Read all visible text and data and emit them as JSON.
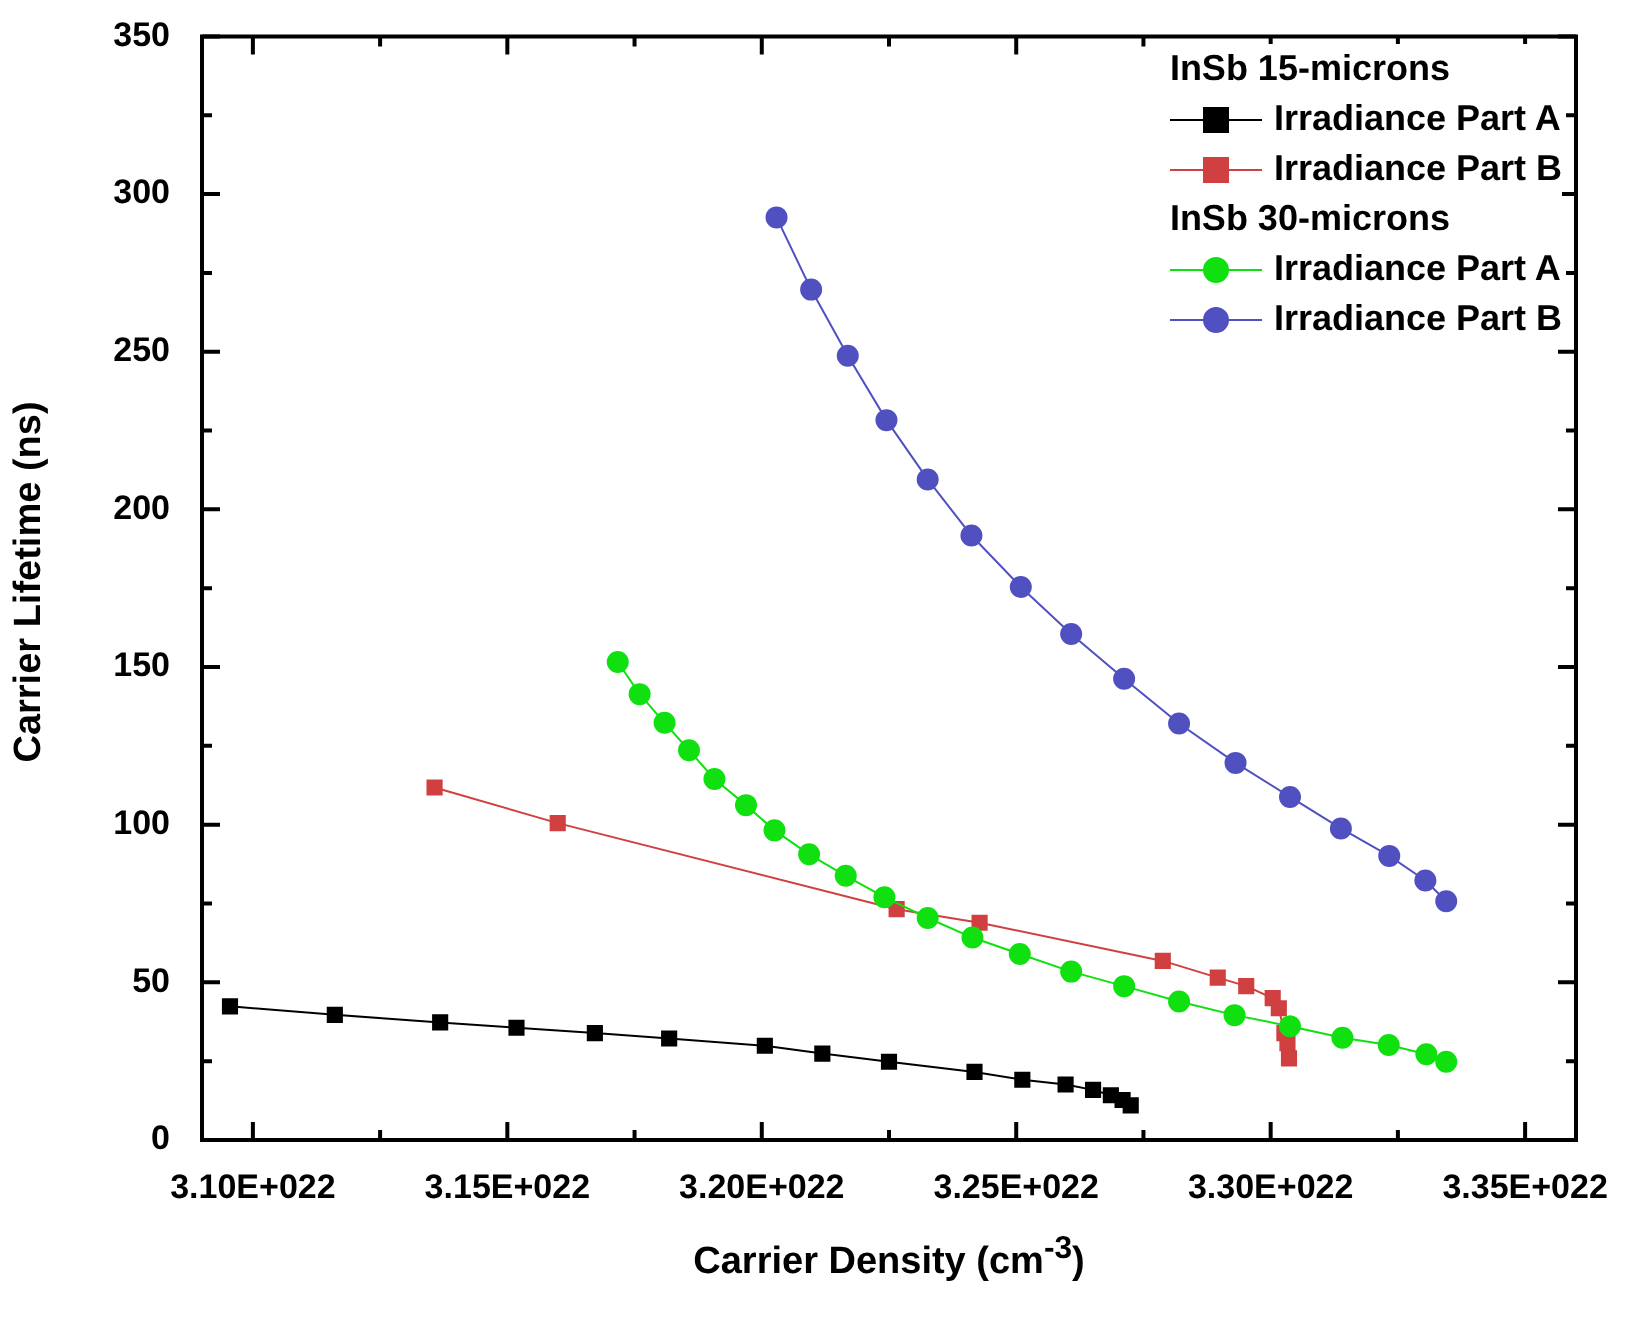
{
  "chart_data": {
    "type": "line",
    "xlabel": "Carrier Density (cm$^{-3}$)",
    "ylabel": "Carrier Lifetime (ns)",
    "annotations": [
      "InSb 15-microns",
      "InSb 30-microns"
    ],
    "xlim": [
      3.09e+22,
      3.36e+22
    ],
    "xticks": [
      {
        "value": 3.1e+22,
        "label": "3.10E+022"
      },
      {
        "value": 3.125e+22,
        "label": null
      },
      {
        "value": 3.15e+22,
        "label": "3.15E+022"
      },
      {
        "value": 3.175e+22,
        "label": null
      },
      {
        "value": 3.2e+22,
        "label": "3.20E+022"
      },
      {
        "value": 3.225e+22,
        "label": null
      },
      {
        "value": 3.25e+22,
        "label": "3.25E+022"
      },
      {
        "value": 3.275e+22,
        "label": null
      },
      {
        "value": 3.3e+22,
        "label": "3.30E+022"
      },
      {
        "value": 3.325e+22,
        "label": null
      },
      {
        "value": 3.35e+22,
        "label": "3.35E+022"
      }
    ],
    "ylim": [
      0,
      350
    ],
    "yticks": [
      0,
      {
        "value": 25,
        "label": null
      },
      50,
      {
        "value": 75,
        "label": null
      },
      100,
      {
        "value": 125,
        "label": null
      },
      150,
      {
        "value": 175,
        "label": null
      },
      200,
      {
        "value": 225,
        "label": null
      },
      250,
      {
        "value": 275,
        "label": null
      },
      300,
      {
        "value": 325,
        "label": null
      },
      350
    ],
    "grid": false,
    "legend": "top right",
    "line_style": "solid",
    "series": [
      {
        "name": "Irradiance Part A",
        "color": "#000000",
        "marker": "square",
        "x": [
          3.0955e+22,
          3.1161e+22,
          3.1368e+22,
          3.1518e+22,
          3.1672e+22,
          3.1818e+22,
          3.2006e+22,
          3.2119e+22,
          3.225e+22,
          3.2418e+22,
          3.2512e+22,
          3.2597e+22,
          3.2651e+22,
          3.2686e+22,
          3.2709e+22,
          3.2725e+22
        ],
        "values": [
          42.4,
          39.7,
          37.3,
          35.6,
          33.9,
          32.2,
          29.9,
          27.4,
          24.8,
          21.6,
          19.1,
          17.6,
          15.9,
          14.2,
          12.7,
          11.0
        ]
      },
      {
        "name": "Irradiance Part B",
        "color": "#d04040",
        "marker": "square",
        "x": [
          3.1357e+22,
          3.1599e+22,
          3.2265e+22,
          3.2428e+22,
          3.2788e+22,
          3.2896e+22,
          3.2952e+22,
          3.3004e+22,
          3.3016e+22,
          3.3027e+22,
          3.3033e+22,
          3.3036e+22
        ],
        "values": [
          111.8,
          100.5,
          73.2,
          68.9,
          56.8,
          51.5,
          48.8,
          45.0,
          41.8,
          33.9,
          30.7,
          25.9
        ]
      },
      {
        "name": "Irradiance Part A",
        "color": "#10e010",
        "marker": "circle",
        "x": [
          3.1717e+22,
          3.176e+22,
          3.1809e+22,
          3.1857e+22,
          3.1907e+22,
          3.1969e+22,
          3.2025e+22,
          3.2093e+22,
          3.2165e+22,
          3.2241e+22,
          3.2326e+22,
          3.2414e+22,
          3.2507e+22,
          3.2608e+22,
          3.2712e+22,
          3.282e+22,
          3.2929e+22,
          3.3038e+22,
          3.3141e+22,
          3.3232e+22,
          3.3306e+22,
          3.3345e+22
        ],
        "values": [
          151.6,
          141.4,
          132.3,
          123.6,
          114.5,
          106.2,
          98.2,
          90.6,
          83.8,
          77.0,
          70.4,
          64.2,
          59.0,
          53.4,
          48.8,
          43.9,
          39.6,
          36.1,
          32.4,
          30.1,
          27.2,
          24.8
        ]
      },
      {
        "name": "Irradiance Part B",
        "color": "#5050c0",
        "marker": "circle",
        "x": [
          3.2029e+22,
          3.2097e+22,
          3.2169e+22,
          3.2245e+22,
          3.2326e+22,
          3.2412e+22,
          3.2509e+22,
          3.2608e+22,
          3.2712e+22,
          3.282e+22,
          3.2931e+22,
          3.3038e+22,
          3.3138e+22,
          3.3233e+22,
          3.3304e+22,
          3.3345e+22
        ],
        "values": [
          292.6,
          269.7,
          248.7,
          228.3,
          209.5,
          191.7,
          175.4,
          160.5,
          146.3,
          132.1,
          119.6,
          108.8,
          98.8,
          90.1,
          82.3,
          75.7
        ]
      }
    ]
  }
}
